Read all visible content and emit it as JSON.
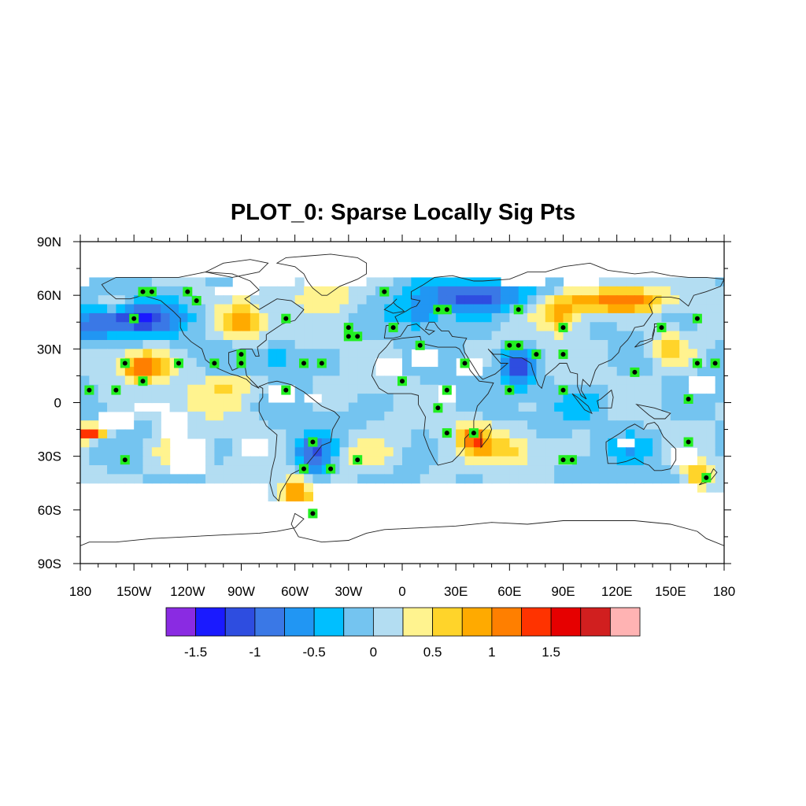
{
  "title": "PLOT_0: Sparse Locally Sig Pts",
  "map": {
    "lon_range": [
      -180,
      180
    ],
    "lat_range": [
      -90,
      90
    ],
    "x_tick_labels": [
      "180",
      "150W",
      "120W",
      "90W",
      "60W",
      "30W",
      "0",
      "30E",
      "60E",
      "90E",
      "120E",
      "150E",
      "180"
    ],
    "x_tick_values": [
      -180,
      -150,
      -120,
      -90,
      -60,
      -30,
      0,
      30,
      60,
      90,
      120,
      150,
      180
    ],
    "y_tick_labels": [
      "90N",
      "60N",
      "30N",
      "0",
      "30S",
      "60S",
      "90S"
    ],
    "y_tick_values": [
      90,
      60,
      30,
      0,
      -30,
      -60,
      -90
    ]
  },
  "colorbar": {
    "colors": [
      "#8a2be2",
      "#1a1aff",
      "#2e4de0",
      "#3a78e6",
      "#2196f3",
      "#00bfff",
      "#74c4f0",
      "#b3ddf2",
      "#fff38f",
      "#ffd42a",
      "#ffaa00",
      "#ff7f00",
      "#ff3300",
      "#e60000",
      "#d11f1f",
      "#ffb3b3"
    ],
    "tick_labels": [
      "-1.5",
      "-1",
      "-0.5",
      "0",
      "0.5",
      "1",
      "1.5"
    ],
    "tick_values": [
      -1.5,
      -1,
      -0.5,
      0,
      0.5,
      1,
      1.5
    ],
    "levels_min": -1.75,
    "levels_step": 0.25
  },
  "sig_points": [
    [
      -145,
      62
    ],
    [
      -140,
      62
    ],
    [
      -120,
      62
    ],
    [
      -115,
      57
    ],
    [
      -150,
      47
    ],
    [
      -65,
      47
    ],
    [
      -30,
      42
    ],
    [
      -30,
      37
    ],
    [
      -25,
      37
    ],
    [
      -10,
      62
    ],
    [
      -5,
      42
    ],
    [
      20,
      52
    ],
    [
      25,
      52
    ],
    [
      65,
      52
    ],
    [
      90,
      42
    ],
    [
      145,
      42
    ],
    [
      165,
      47
    ],
    [
      -155,
      22
    ],
    [
      -125,
      22
    ],
    [
      -105,
      22
    ],
    [
      -90,
      27
    ],
    [
      -90,
      22
    ],
    [
      -55,
      22
    ],
    [
      -45,
      22
    ],
    [
      10,
      32
    ],
    [
      35,
      22
    ],
    [
      60,
      32
    ],
    [
      65,
      32
    ],
    [
      75,
      27
    ],
    [
      90,
      27
    ],
    [
      130,
      17
    ],
    [
      165,
      22
    ],
    [
      175,
      22
    ],
    [
      -175,
      7
    ],
    [
      -160,
      7
    ],
    [
      -145,
      12
    ],
    [
      -65,
      7
    ],
    [
      0,
      12
    ],
    [
      20,
      -3
    ],
    [
      25,
      7
    ],
    [
      60,
      7
    ],
    [
      90,
      7
    ],
    [
      160,
      2
    ],
    [
      25,
      -17
    ],
    [
      40,
      -17
    ],
    [
      -50,
      -22
    ],
    [
      160,
      -22
    ],
    [
      -155,
      -32
    ],
    [
      -25,
      -32
    ],
    [
      90,
      -32
    ],
    [
      95,
      -32
    ],
    [
      -55,
      -37
    ],
    [
      -40,
      -37
    ],
    [
      170,
      -42
    ],
    [
      -50,
      -62
    ]
  ]
}
